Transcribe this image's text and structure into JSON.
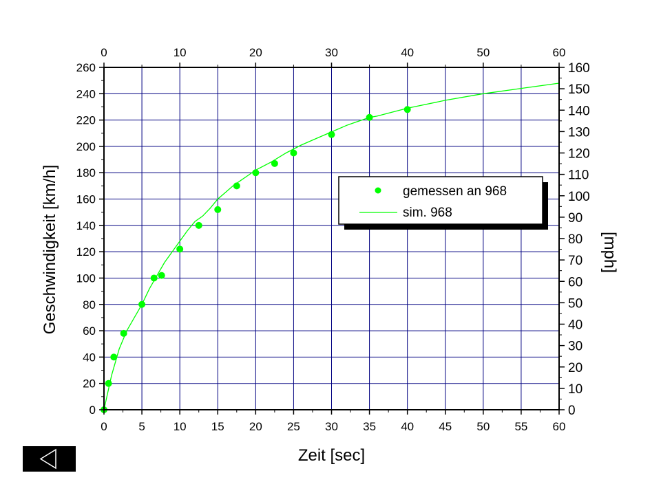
{
  "chart_data": {
    "type": "scatter",
    "xlabel": "Zeit [sec]",
    "ylabel": "Geschwindigkeit [km/h]",
    "y2label": "[mph]",
    "xlim": [
      0,
      60
    ],
    "ylim": [
      0,
      260
    ],
    "y2lim": [
      0,
      160
    ],
    "x_ticks": [
      "0",
      "5",
      "10",
      "15",
      "20",
      "25",
      "30",
      "35",
      "40",
      "45",
      "50",
      "55",
      "60"
    ],
    "x2_ticks": [
      "0",
      "10",
      "20",
      "30",
      "40",
      "50",
      "60"
    ],
    "y_ticks": [
      "0",
      "20",
      "40",
      "60",
      "80",
      "100",
      "120",
      "140",
      "160",
      "180",
      "200",
      "220",
      "240",
      "260"
    ],
    "y2_ticks": [
      "0",
      "10",
      "20",
      "30",
      "40",
      "50",
      "60",
      "70",
      "80",
      "90",
      "100",
      "110",
      "120",
      "130",
      "140",
      "150",
      "160"
    ],
    "grid": true,
    "legend_position": "right-center",
    "colors": {
      "series": "#00ff00",
      "grid": "#000080",
      "axes": "#000000"
    },
    "series": [
      {
        "name": "gemessen an 968",
        "style": "markers",
        "x": [
          0,
          0.6,
          1.3,
          2.6,
          5.0,
          6.6,
          7.6,
          10.0,
          12.5,
          15.0,
          17.5,
          20.0,
          22.5,
          25.0,
          30.0,
          35.0,
          40.0
        ],
        "y": [
          0,
          20,
          40,
          58,
          80,
          100,
          102,
          122,
          140,
          152,
          170,
          180,
          187,
          195,
          209,
          222,
          228
        ]
      },
      {
        "name": "sim. 968",
        "style": "line",
        "x": [
          0,
          1,
          2,
          3,
          4,
          5,
          6,
          7,
          8,
          9,
          10,
          11,
          12,
          13,
          14,
          15,
          16,
          17,
          18,
          19,
          20,
          22,
          24,
          26,
          28,
          30,
          32,
          34,
          35,
          36,
          38,
          40,
          45,
          50,
          55,
          60
        ],
        "y": [
          0,
          26,
          46,
          60,
          70,
          80,
          92,
          102,
          112,
          120,
          128,
          136,
          143,
          147,
          153,
          160,
          165,
          170,
          174,
          178,
          182,
          188,
          195,
          201,
          206,
          211,
          216,
          220,
          222,
          223,
          226,
          229,
          235,
          240,
          244,
          248
        ]
      }
    ]
  },
  "nav": {
    "back_icon": "triangle-left-icon"
  }
}
